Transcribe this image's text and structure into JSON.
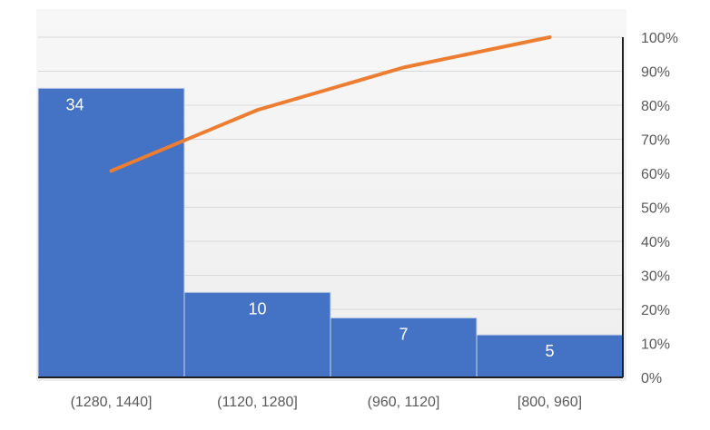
{
  "chart_data": {
    "type": "bar",
    "subtype": "pareto",
    "title": "",
    "xlabel": "",
    "ylabel": "",
    "categories": [
      "(1280, 1440]",
      "(1120, 1280]",
      "(960, 1120]",
      "[800, 960]"
    ],
    "series": [
      {
        "name": "",
        "type": "bar",
        "values": [
          34,
          10,
          7,
          5
        ],
        "color": "#4472C4"
      },
      {
        "name": "",
        "type": "line",
        "axis": "secondary",
        "values": [
          60.7,
          78.6,
          91.1,
          100
        ],
        "color": "#ED7D31"
      }
    ],
    "data_labels": [
      "34",
      "10",
      "7",
      "5"
    ],
    "ylim": [
      0,
      40
    ],
    "y2lim": [
      0,
      100
    ],
    "y2_ticks": [
      "0%",
      "10%",
      "20%",
      "30%",
      "40%",
      "50%",
      "60%",
      "70%",
      "80%",
      "90%",
      "100%"
    ],
    "grid": true,
    "legend": "none"
  }
}
